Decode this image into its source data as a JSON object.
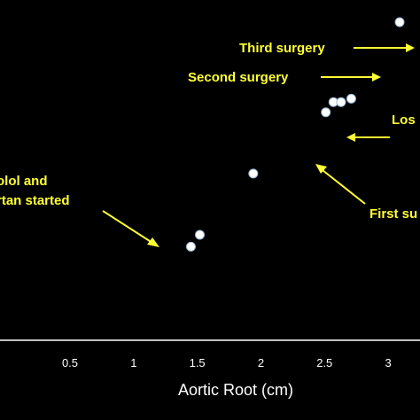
{
  "chart_data": {
    "type": "scatter",
    "title": "",
    "xlabel": "Aortic Root (cm)",
    "ylabel": "",
    "xlim": [
      -0.05,
      3.25
    ],
    "ylim": [
      0,
      1
    ],
    "grid": false,
    "x_ticks": [
      "0.5",
      "1",
      "1.5",
      "2",
      "2.5",
      "3"
    ],
    "x_tick_values": [
      0.5,
      1.0,
      1.5,
      2.0,
      2.5,
      3.0
    ],
    "points": [
      {
        "x": 1.45,
        "y": 0.275
      },
      {
        "x": 1.52,
        "y": 0.31
      },
      {
        "x": 1.94,
        "y": 0.49
      },
      {
        "x": 2.51,
        "y": 0.67
      },
      {
        "x": 2.57,
        "y": 0.7
      },
      {
        "x": 2.63,
        "y": 0.7
      },
      {
        "x": 2.71,
        "y": 0.71
      },
      {
        "x": 3.09,
        "y": 0.935
      }
    ],
    "annotations": [
      {
        "lines": [
          "olol and",
          "rtan started"
        ]
      },
      {
        "lines": [
          "Third surgery"
        ]
      },
      {
        "lines": [
          "Second surgery"
        ]
      },
      {
        "lines": [
          "Los"
        ]
      },
      {
        "lines": [
          "First su"
        ]
      }
    ],
    "colors": {
      "background": "#000000",
      "points": "#ffffff",
      "annotation": "#ffff33",
      "axis": "#ffffff"
    }
  }
}
